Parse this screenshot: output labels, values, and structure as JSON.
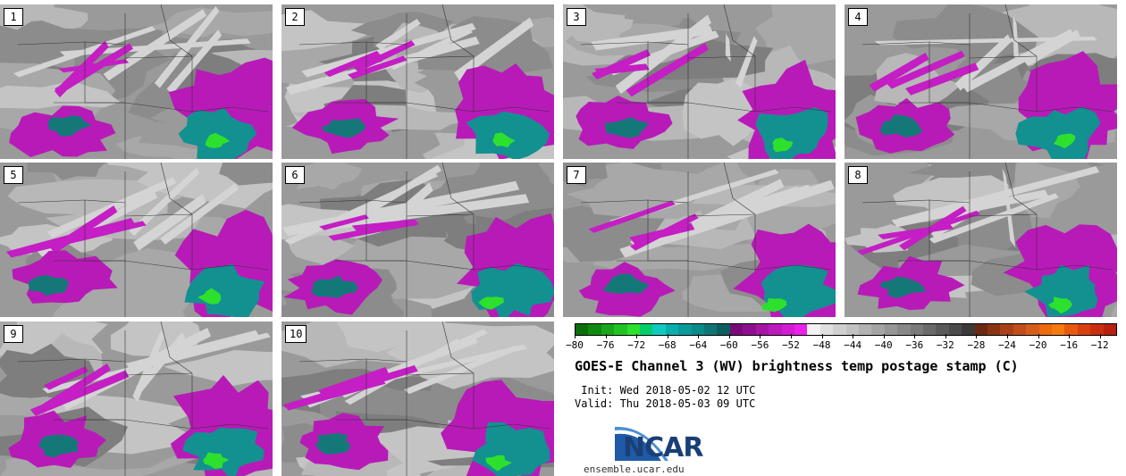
{
  "panels": [
    {
      "label": "1",
      "seed": 11
    },
    {
      "label": "2",
      "seed": 23
    },
    {
      "label": "3",
      "seed": 37
    },
    {
      "label": "4",
      "seed": 41
    },
    {
      "label": "5",
      "seed": 53
    },
    {
      "label": "6",
      "seed": 67
    },
    {
      "label": "7",
      "seed": 71
    },
    {
      "label": "8",
      "seed": 83
    },
    {
      "label": "9",
      "seed": 97
    },
    {
      "label": "10",
      "seed": 101
    }
  ],
  "colorbar": {
    "min": -80,
    "max": -10,
    "tick_labels": [
      "−80",
      "−76",
      "−72",
      "−68",
      "−64",
      "−60",
      "−56",
      "−52",
      "−48",
      "−44",
      "−40",
      "−36",
      "−32",
      "−28",
      "−24",
      "−20",
      "−16",
      "−12"
    ],
    "tick_values": [
      -80,
      -76,
      -72,
      -68,
      -64,
      -60,
      -56,
      -52,
      -48,
      -44,
      -40,
      -36,
      -32,
      -28,
      -24,
      -20,
      -16,
      -12
    ],
    "colors": [
      "#0a6e0a",
      "#128a12",
      "#1aa61a",
      "#22c222",
      "#2ee02e",
      "#00ce6a",
      "#12c9c0",
      "#0aaeae",
      "#0a9a9a",
      "#0a8a8a",
      "#117474",
      "#0b5e5e",
      "#7a0a7a",
      "#8e0f8e",
      "#a516a5",
      "#bc1bbc",
      "#d21ed2",
      "#ea22ea",
      "#f2f2f2",
      "#e0e0e0",
      "#d0d0d0",
      "#c2c2c2",
      "#b2b2b2",
      "#a4a4a4",
      "#969696",
      "#888888",
      "#7a7a7a",
      "#6a6a6a",
      "#5a5a5a",
      "#4a4a4a",
      "#3a3a3a",
      "#6a2a12",
      "#8a3412",
      "#a8421a",
      "#c04f1e",
      "#d45e1e",
      "#ec6a10",
      "#f47a12",
      "#e85a10",
      "#d84010",
      "#c83010",
      "#b82010"
    ]
  },
  "title": "GOES-E Channel 3 (WV) brightness temp postage stamp (C)",
  "init": " Init: Wed 2018-05-02 12 UTC",
  "valid": "Valid: Thu 2018-05-03 09 UTC",
  "logo": {
    "word": "NCAR",
    "url": "ensemble.ucar.edu",
    "brand_color": "#1a3f76"
  }
}
